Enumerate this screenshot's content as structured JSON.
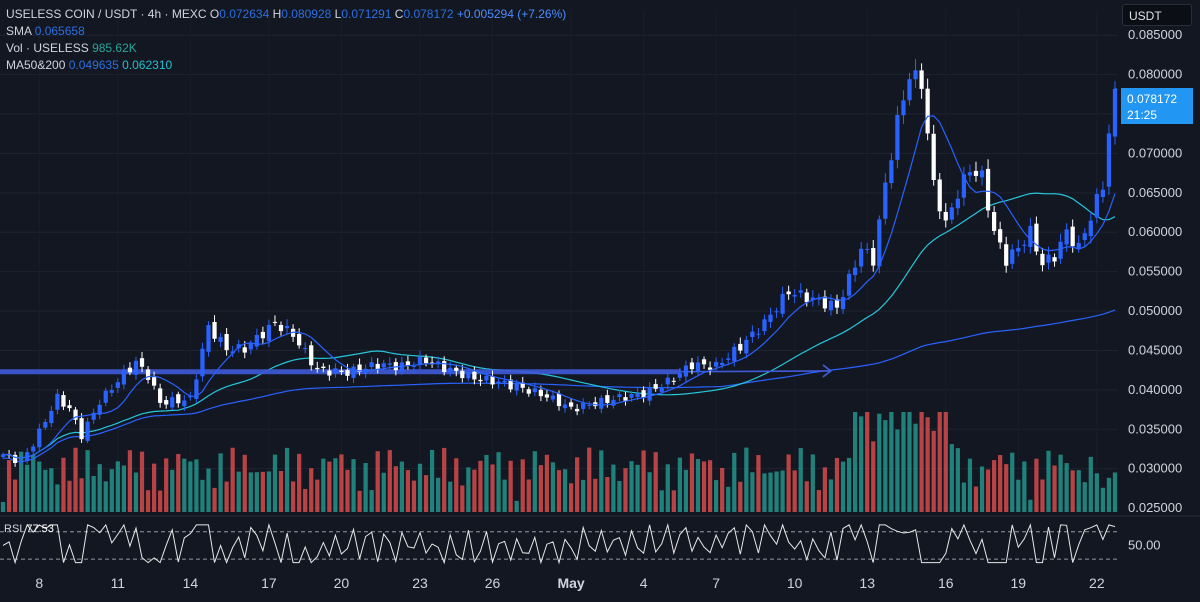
{
  "header": {
    "symbol": "USELESS COIN / USDT · 4h · MEXC",
    "o_label": "O",
    "o_value": "0.072634",
    "h_label": "H",
    "h_value": "0.080928",
    "l_label": "L",
    "l_value": "0.071291",
    "c_label": "C",
    "c_value": "0.078172",
    "change": "+0.005294 (+7.26%)",
    "sma_label": "SMA",
    "sma_value": "0.065658",
    "vol_label": "Vol · USELESS",
    "vol_value": "985.62K",
    "ma_label": "MA50&200",
    "ma50_value": "0.049635",
    "ma200_value": "0.062310"
  },
  "currency": "USDT",
  "last_price": {
    "price": "0.078172",
    "countdown": "21:25"
  },
  "rsi": {
    "label": "RSI",
    "value": "77.53",
    "level_label": "50.00"
  },
  "colors": {
    "background": "#131722",
    "up": "#2962ff",
    "down": "#ffffff",
    "sma": "#2962ff",
    "ma50": "#26c6da",
    "ma200": "#2962ff",
    "vol_up": "#26a69a",
    "vol_down": "#ef5350",
    "line": "#3f5bd9"
  },
  "chart_data": {
    "type": "candlestick",
    "timeframe": "4h",
    "y_ticks": [
      "0.085000",
      "0.080000",
      "0.075000",
      "0.070000",
      "0.065000",
      "0.060000",
      "0.055000",
      "0.050000",
      "0.045000",
      "0.040000",
      "0.035000",
      "0.030000",
      "0.025000"
    ],
    "ylim": [
      0.0245,
      0.0882
    ],
    "x_ticks": [
      "8",
      "11",
      "14",
      "17",
      "20",
      "23",
      "26",
      "May",
      "4",
      "7",
      "10",
      "13",
      "16",
      "19",
      "22"
    ],
    "key_closes": [
      [
        0,
        0.0318
      ],
      [
        3,
        0.0308
      ],
      [
        5,
        0.0332
      ],
      [
        9,
        0.039
      ],
      [
        11,
        0.0376
      ],
      [
        13,
        0.0342
      ],
      [
        16,
        0.0385
      ],
      [
        20,
        0.042
      ],
      [
        22,
        0.0435
      ],
      [
        24,
        0.0418
      ],
      [
        26,
        0.0384
      ],
      [
        31,
        0.0388
      ],
      [
        34,
        0.048
      ],
      [
        37,
        0.0452
      ],
      [
        40,
        0.0452
      ],
      [
        45,
        0.0485
      ],
      [
        48,
        0.047
      ],
      [
        52,
        0.0425
      ],
      [
        57,
        0.0422
      ],
      [
        62,
        0.0432
      ],
      [
        66,
        0.043
      ],
      [
        70,
        0.0438
      ],
      [
        74,
        0.0425
      ],
      [
        78,
        0.0415
      ],
      [
        82,
        0.041
      ],
      [
        86,
        0.0402
      ],
      [
        90,
        0.0392
      ],
      [
        94,
        0.0376
      ],
      [
        98,
        0.0383
      ],
      [
        102,
        0.039
      ],
      [
        106,
        0.0395
      ],
      [
        110,
        0.041
      ],
      [
        114,
        0.0432
      ],
      [
        118,
        0.043
      ],
      [
        122,
        0.0455
      ],
      [
        126,
        0.0485
      ],
      [
        130,
        0.0525
      ],
      [
        134,
        0.0515
      ],
      [
        138,
        0.0505
      ],
      [
        140,
        0.054
      ],
      [
        142,
        0.058
      ],
      [
        144,
        0.0565
      ],
      [
        146,
        0.066
      ],
      [
        148,
        0.074
      ],
      [
        150,
        0.08
      ],
      [
        152,
        0.079
      ],
      [
        154,
        0.066
      ],
      [
        156,
        0.061
      ],
      [
        158,
        0.065
      ],
      [
        160,
        0.068
      ],
      [
        162,
        0.067
      ],
      [
        164,
        0.06
      ],
      [
        166,
        0.0565
      ],
      [
        168,
        0.058
      ],
      [
        170,
        0.06
      ],
      [
        172,
        0.056
      ],
      [
        174,
        0.057
      ],
      [
        176,
        0.06
      ],
      [
        178,
        0.058
      ],
      [
        180,
        0.062
      ],
      [
        182,
        0.066
      ],
      [
        183,
        0.0726
      ],
      [
        184,
        0.0782
      ]
    ],
    "horizontal_level": {
      "value": 0.0423,
      "arrow_end_value": 0.0424
    },
    "volume_max": "985.62K",
    "rsi_range": [
      0,
      100
    ],
    "rsi_last": 77.53
  }
}
